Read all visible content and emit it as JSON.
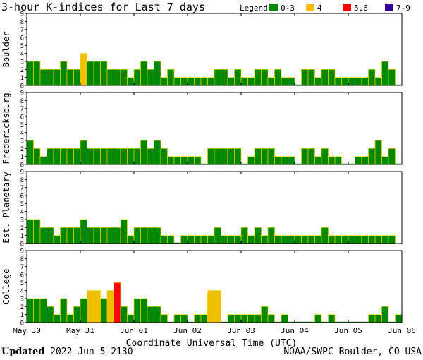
{
  "chart_data": {
    "type": "bar",
    "title": "3-hour K-indices for Last 7 days",
    "legend": {
      "label": "Legend:",
      "entries": [
        {
          "name": "0-3",
          "color": "#008800"
        },
        {
          "name": "4",
          "color": "#f0c000"
        },
        {
          "name": "5,6",
          "color": "#ff0000"
        },
        {
          "name": "7-9",
          "color": "#330099"
        }
      ]
    },
    "xlabel": "Coordinate Universal Time (UTC)",
    "x_ticks": [
      "May 30",
      "May 31",
      "Jun 01",
      "Jun 02",
      "Jun 03",
      "Jun 04",
      "Jun 05",
      "Jun 06"
    ],
    "y_ticks": [
      "0",
      "1",
      "2",
      "3",
      "4",
      "5",
      "6",
      "7",
      "8",
      "9"
    ],
    "ylim": [
      0,
      9
    ],
    "bars_per_panel": 56,
    "panels": [
      {
        "name": "Boulder",
        "values": [
          3,
          3,
          2,
          2,
          2,
          3,
          2,
          2,
          4,
          3,
          3,
          3,
          2,
          2,
          2,
          1,
          2,
          3,
          2,
          3,
          1,
          2,
          1,
          1,
          1,
          1,
          1,
          1,
          2,
          2,
          1,
          2,
          1,
          1,
          2,
          2,
          1,
          2,
          1,
          1,
          0,
          2,
          2,
          1,
          2,
          2,
          1,
          1,
          1,
          1,
          1,
          2,
          1,
          3,
          2,
          0
        ]
      },
      {
        "name": "Fredericksburg",
        "values": [
          3,
          2,
          1,
          2,
          2,
          2,
          2,
          2,
          3,
          2,
          2,
          2,
          2,
          2,
          2,
          2,
          2,
          3,
          2,
          3,
          2,
          1,
          1,
          1,
          1,
          1,
          0,
          2,
          2,
          2,
          2,
          2,
          0,
          1,
          2,
          2,
          2,
          1,
          1,
          1,
          0,
          2,
          2,
          1,
          2,
          1,
          1,
          0,
          0,
          1,
          1,
          2,
          3,
          1,
          2,
          0
        ]
      },
      {
        "name": "Est. Planetary",
        "values": [
          3,
          3,
          2,
          2,
          1,
          2,
          2,
          2,
          3,
          2,
          2,
          2,
          2,
          2,
          3,
          1,
          2,
          2,
          2,
          2,
          1,
          1,
          0,
          1,
          1,
          1,
          1,
          1,
          2,
          1,
          1,
          1,
          2,
          1,
          2,
          1,
          2,
          1,
          1,
          1,
          1,
          1,
          1,
          1,
          2,
          1,
          1,
          1,
          1,
          1,
          1,
          1,
          1,
          1,
          1
        ]
      },
      {
        "name": "College",
        "values": [
          3,
          3,
          3,
          2,
          1,
          3,
          1,
          2,
          3,
          4,
          4,
          3,
          4,
          5,
          2,
          1,
          3,
          3,
          2,
          2,
          1,
          0,
          1,
          1,
          0,
          1,
          1,
          4,
          4,
          0,
          1,
          1,
          1,
          1,
          1,
          2,
          1,
          0,
          1,
          0,
          0,
          0,
          0,
          1,
          0,
          1,
          0,
          0,
          0,
          0,
          0,
          1,
          1,
          2,
          0,
          1
        ]
      }
    ]
  },
  "footer": {
    "updated_label": "Updated",
    "updated_value": "2022 Jun  5 2130",
    "source": "NOAA/SWPC Boulder, CO USA"
  }
}
